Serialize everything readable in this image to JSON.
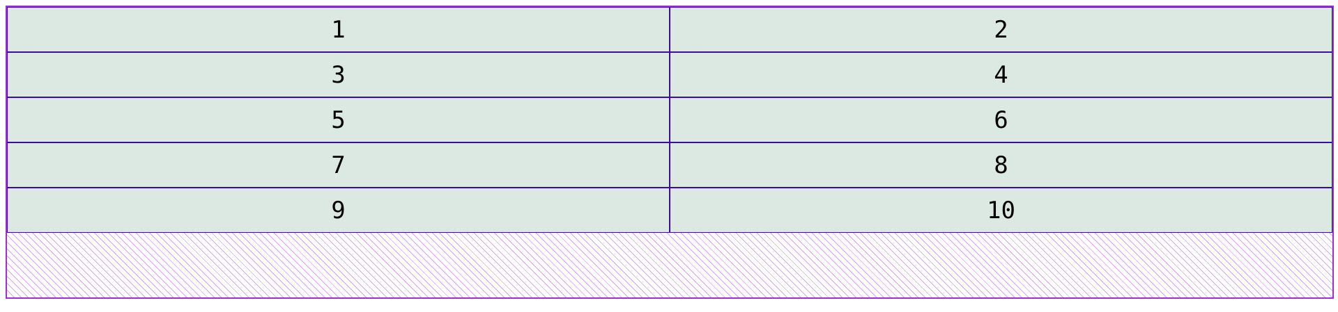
{
  "grid": {
    "cells": [
      "1",
      "2",
      "3",
      "4",
      "5",
      "6",
      "7",
      "8",
      "9",
      "10"
    ]
  }
}
